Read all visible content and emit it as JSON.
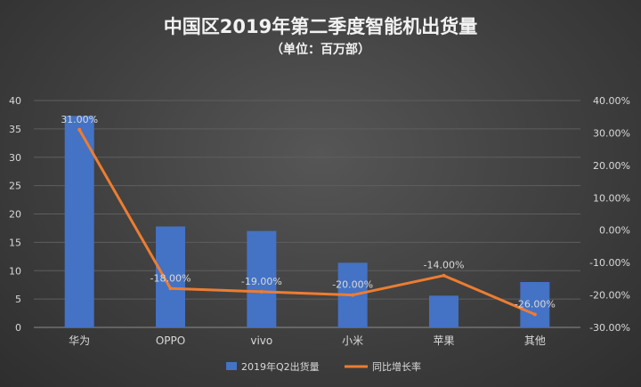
{
  "chart_data": {
    "type": "bar",
    "title": "中国区2019年第二季度智能机出货量",
    "subtitle": "（单位：百万部）",
    "categories": [
      "华为",
      "OPPO",
      "vivo",
      "小米",
      "苹果",
      "其他"
    ],
    "series": [
      {
        "name": "2019年Q2出货量",
        "type": "bar",
        "axis": "left",
        "values": [
          37.3,
          17.8,
          17.0,
          11.4,
          5.6,
          8.0
        ],
        "color": "#4472c4"
      },
      {
        "name": "同比增长率",
        "type": "line",
        "axis": "right",
        "values": [
          31.0,
          -18.0,
          -19.0,
          -20.0,
          -14.0,
          -26.0
        ],
        "labels": [
          "31.00%",
          "-18.00%",
          "-19.00%",
          "-20.00%",
          "-14.00%",
          "-26.00%"
        ],
        "color": "#ed7d31"
      }
    ],
    "y_left": {
      "lim": [
        0,
        40
      ],
      "ticks": [
        "0",
        "5",
        "10",
        "15",
        "20",
        "25",
        "30",
        "35",
        "40"
      ]
    },
    "y_right": {
      "lim": [
        -30,
        40
      ],
      "ticks": [
        "-30.00%",
        "-20.00%",
        "-10.00%",
        "0.00%",
        "10.00%",
        "20.00%",
        "30.00%",
        "40.00%"
      ]
    },
    "grid": true,
    "legend": "bottom"
  }
}
